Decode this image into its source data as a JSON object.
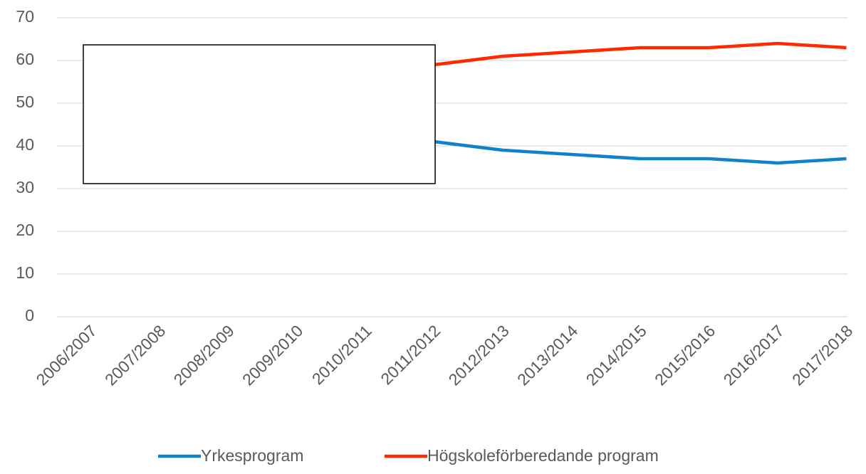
{
  "chart_data": {
    "type": "line",
    "categories": [
      "2006/2007",
      "2007/2008",
      "2008/2009",
      "2009/2010",
      "2010/2011",
      "2011/2012",
      "2012/2013",
      "2013/2014",
      "2014/2015",
      "2015/2016",
      "2016/2017",
      "2017/2018"
    ],
    "series": [
      {
        "name": "Yrkesprogram",
        "color": "#0f82cc",
        "values": [
          null,
          null,
          null,
          null,
          null,
          41,
          39,
          38,
          37,
          37,
          36,
          37
        ]
      },
      {
        "name": "Högskoleförberedande program",
        "color": "#ff2a00",
        "values": [
          null,
          null,
          null,
          null,
          null,
          59,
          61,
          62,
          63,
          63,
          64,
          63
        ]
      }
    ],
    "ylim": [
      0,
      70
    ],
    "yticks": [
      0,
      10,
      20,
      30,
      40,
      50,
      60,
      70
    ],
    "grid": true,
    "legend": "bottom"
  }
}
